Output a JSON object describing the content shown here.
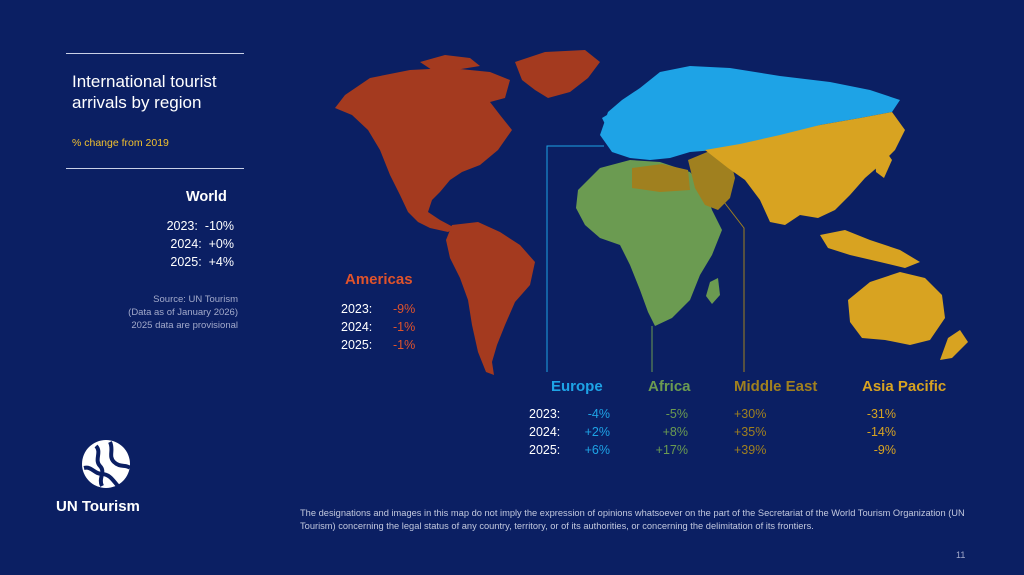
{
  "title": "International tourist arrivals by region",
  "subtitle": "% change from 2019",
  "world": {
    "name": "World",
    "rows": [
      {
        "year": "2023:",
        "value": "-10%"
      },
      {
        "year": "2024:",
        "value": "+0%"
      },
      {
        "year": "2025:",
        "value": "+4%"
      }
    ]
  },
  "source": {
    "line1": "Source: UN Tourism",
    "line2": "(Data as of January 2026)",
    "line3": "2025 data are provisional"
  },
  "regions": {
    "americas": {
      "name": "Americas",
      "color": "#a43a1f",
      "values": [
        "-9%",
        "-1%",
        "-1%"
      ]
    },
    "europe": {
      "name": "Europe",
      "color": "#1ea3e6",
      "values": [
        "-4%",
        "+2%",
        "+6%"
      ]
    },
    "africa": {
      "name": "Africa",
      "color": "#6b9b51",
      "values": [
        "-5%",
        "+8%",
        "+17%"
      ]
    },
    "middle_east": {
      "name": "Middle East",
      "color": "#a0801f",
      "values": [
        "+30%",
        "+35%",
        "+39%"
      ]
    },
    "asia_pacific": {
      "name": "Asia Pacific",
      "color": "#d8a321",
      "values": [
        "-31%",
        "-14%",
        "-9%"
      ]
    }
  },
  "years": [
    "2023:",
    "2024:",
    "2025:"
  ],
  "logo_text": "UN Tourism",
  "disclaimer": "The designations and images in this map do not imply the expression of opinions whatsoever on the part of the Secretariat of the World Tourism Organization (UN Tourism) concerning the legal status of any country, territory, or of its authorities, or concerning the delimitation of its frontiers.",
  "page_number": "11"
}
